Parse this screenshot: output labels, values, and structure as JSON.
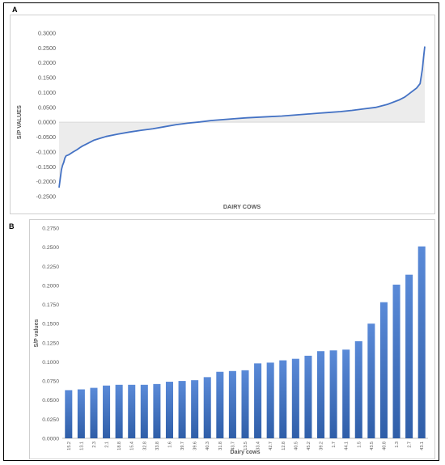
{
  "panels": {
    "a_label": "A",
    "b_label": "B"
  },
  "colors": {
    "series": "#4472c4",
    "bar_top": "#5a8ad8",
    "bar_bottom": "#2f5ea8",
    "axis_text": "#595959",
    "area_fill": "#ececec"
  },
  "chart_data": [
    {
      "type": "line",
      "title": "",
      "xlabel": "DAIRY COWS",
      "ylabel": "S/P VALUES",
      "ylim": [
        -0.25,
        0.3
      ],
      "yticks": [
        "-0.2500",
        "-0.2000",
        "-0.1500",
        "-0.1000",
        "-0.0500",
        "0.0000",
        "0.0500",
        "0.1000",
        "0.1500",
        "0.2000",
        "0.2500",
        "0.3000"
      ],
      "x": [
        0,
        1,
        2,
        3,
        4,
        5,
        6,
        8,
        10,
        12,
        15,
        18,
        20,
        25,
        30,
        40,
        50,
        60,
        70,
        80,
        90,
        100,
        110,
        120,
        130,
        140,
        150,
        160,
        170,
        180,
        190,
        200,
        210,
        220,
        230,
        240,
        250,
        260,
        270,
        280,
        290,
        295,
        300,
        305,
        308,
        310,
        311,
        312
      ],
      "series": [
        {
          "values": [
            -0.22,
            -0.19,
            -0.16,
            -0.145,
            -0.135,
            -0.12,
            -0.113,
            -0.11,
            -0.105,
            -0.1,
            -0.093,
            -0.085,
            -0.08,
            -0.07,
            -0.06,
            -0.048,
            -0.04,
            -0.033,
            -0.027,
            -0.022,
            -0.015,
            -0.008,
            -0.003,
            0.001,
            0.006,
            0.009,
            0.012,
            0.015,
            0.017,
            0.019,
            0.021,
            0.024,
            0.027,
            0.03,
            0.033,
            0.036,
            0.04,
            0.045,
            0.05,
            0.06,
            0.075,
            0.085,
            0.1,
            0.115,
            0.13,
            0.18,
            0.22,
            0.255
          ]
        }
      ]
    },
    {
      "type": "bar",
      "title": "",
      "xlabel": "Dairy cows",
      "ylabel": "S/P values",
      "ylim": [
        0,
        0.275
      ],
      "yticks": [
        "0.0000",
        "0.0250",
        "0.0500",
        "0.0750",
        "0.1000",
        "0.1250",
        "0.1500",
        "0.1750",
        "0.2000",
        "0.2250",
        "0.2500",
        "0.2750"
      ],
      "categories": [
        "15.2",
        "13.1",
        "2.3",
        "2.1",
        "18.8",
        "15.4",
        "32.8",
        "33.8",
        "1.6",
        "39.7",
        "39.6",
        "40.3",
        "31.8",
        "43.7",
        "13.5",
        "33.4",
        "42.7",
        "12.8",
        "40.5",
        "45.2",
        "39.2",
        "1.7",
        "44.1",
        "1.5",
        "43.5",
        "40.8",
        "1.3",
        "2.7",
        "43.1"
      ],
      "values": [
        0.063,
        0.064,
        0.066,
        0.069,
        0.07,
        0.07,
        0.07,
        0.071,
        0.074,
        0.075,
        0.076,
        0.08,
        0.087,
        0.088,
        0.089,
        0.098,
        0.099,
        0.102,
        0.104,
        0.108,
        0.114,
        0.115,
        0.116,
        0.127,
        0.15,
        0.178,
        0.201,
        0.214,
        0.251
      ]
    }
  ]
}
